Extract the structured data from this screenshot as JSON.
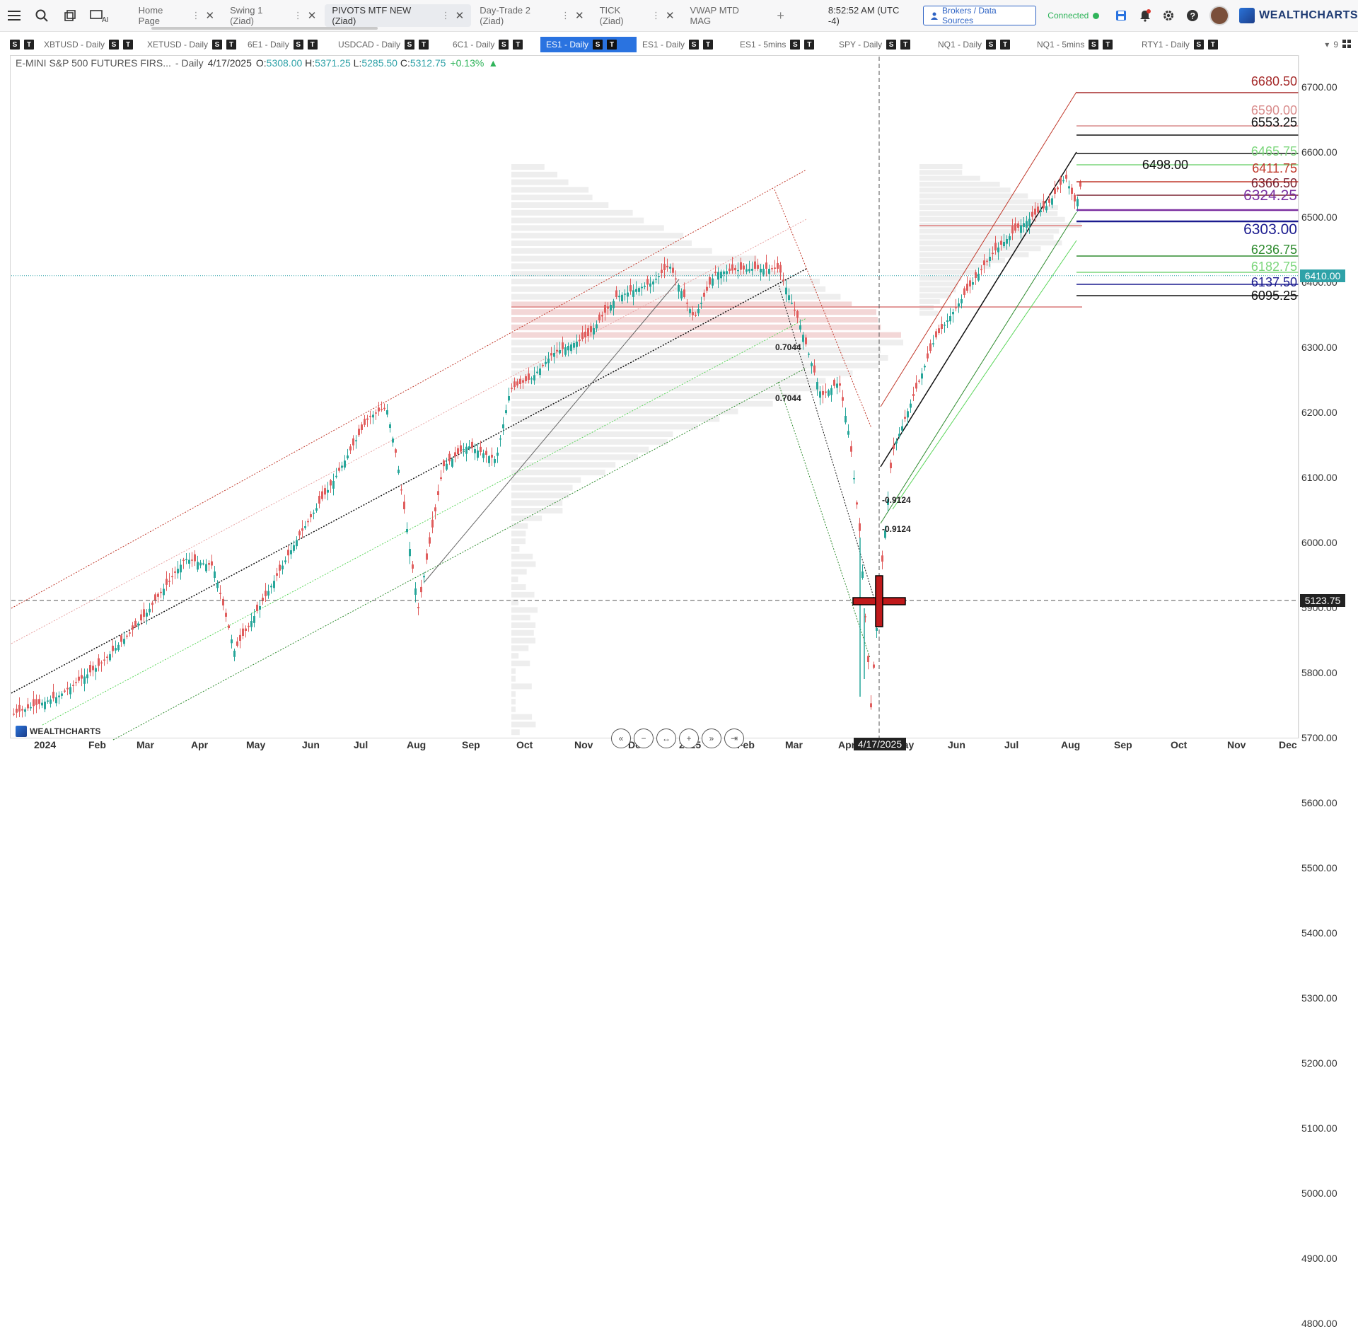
{
  "toolbar": {
    "tabs": [
      {
        "label": "Home Page"
      },
      {
        "label": "Swing 1 (Ziad)"
      },
      {
        "label": "PIVOTS MTF NEW (Ziad)"
      },
      {
        "label": "Day-Trade 2 (Ziad)"
      },
      {
        "label": "TICK (Ziad)"
      },
      {
        "label": "VWAP MTD MAG"
      }
    ],
    "clock": "8:52:52 AM",
    "timezone": "(UTC -4)",
    "brokers_label": "Brokers / Data Sources",
    "status": "Connected",
    "logo_text": "WEALTHCHARTS"
  },
  "symbols": [
    {
      "label": "XBTUSD - Daily"
    },
    {
      "label": "XETUSD - Daily"
    },
    {
      "label": "6E1 - Daily"
    },
    {
      "label": "USDCAD - Daily"
    },
    {
      "label": "6C1 - Daily"
    },
    {
      "label": "ES1 - Daily"
    },
    {
      "label": "ES1 - Daily"
    },
    {
      "label": "ES1 - 5mins"
    },
    {
      "label": "SPY - Daily"
    },
    {
      "label": "NQ1 - Daily"
    },
    {
      "label": "NQ1 - 5mins"
    },
    {
      "label": "RTY1 - Daily"
    }
  ],
  "layout_count": "9",
  "chart": {
    "name": "E-MINI S&P 500 FUTURES FIRS...",
    "interval": "- Daily",
    "date": "4/17/2025",
    "open": "5308.00",
    "high": "5371.25",
    "low": "5285.50",
    "close": "5312.75",
    "change": "+0.13%",
    "last_price": "6410.00",
    "cursor_price": "5123.75",
    "cursor_date": "4/17/2025",
    "watermark": "WEALTHCHARTS",
    "y_ticks": [
      "6700.00",
      "6600.00",
      "6500.00",
      "6400.00",
      "6300.00",
      "6200.00",
      "6100.00",
      "6000.00",
      "5900.00",
      "5800.00",
      "5700.00",
      "5600.00",
      "5500.00",
      "5400.00",
      "5300.00",
      "5200.00",
      "5100.00",
      "5000.00",
      "4900.00",
      "4800.00"
    ],
    "x_ticks": [
      "2024",
      "Feb",
      "Mar",
      "Apr",
      "May",
      "Jun",
      "Jul",
      "Aug",
      "Sep",
      "Oct",
      "Nov",
      "Dec",
      "2025",
      "Feb",
      "Mar",
      "Apr",
      "May",
      "Jun",
      "Jul",
      "Aug",
      "Sep",
      "Oct",
      "Nov",
      "Dec"
    ],
    "levels": [
      {
        "value": "6680.50",
        "color": "#a52a2a"
      },
      {
        "value": "6590.00",
        "color": "#d98c8c"
      },
      {
        "value": "6553.25",
        "color": "#111111"
      },
      {
        "value": "6465.75",
        "color": "#7bd67b"
      },
      {
        "value": "6498.00",
        "color": "#111111"
      },
      {
        "value": "6411.75",
        "color": "#c0392b"
      },
      {
        "value": "6366.50",
        "color": "#7a2230"
      },
      {
        "value": "6324.25",
        "color": "#7b2fa0"
      },
      {
        "value": "6303.00",
        "color": "#1b1b8f"
      },
      {
        "value": "6236.75",
        "color": "#2e8b2e"
      },
      {
        "value": "6182.75",
        "color": "#7bd67b"
      },
      {
        "value": "6137.50",
        "color": "#1b1b8f"
      },
      {
        "value": "6095.25",
        "color": "#111111"
      }
    ],
    "fib_labels": [
      "0.7044",
      "0.7044",
      "-0.9124",
      "-0.9124"
    ]
  }
}
